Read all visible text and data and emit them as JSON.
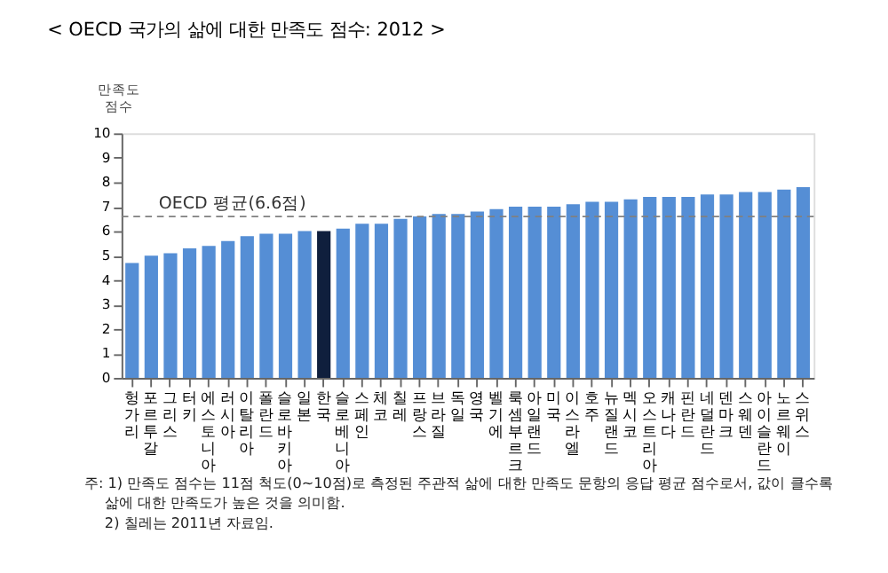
{
  "chart_data": {
    "type": "bar",
    "title": "< OECD 국가의 삶에 대한 만족도 점수: 2012 >",
    "ylabel": "만족도 점수",
    "categories": [
      "헝가리",
      "포르투갈",
      "그리스",
      "터키",
      "에스토니아",
      "러시아",
      "이탈리아",
      "폴란드",
      "슬로바키아",
      "일본",
      "한국",
      "슬로베니아",
      "스페인",
      "체코",
      "칠레",
      "프랑스",
      "브라질",
      "독일",
      "영국",
      "벨기에",
      "룩셈부르크",
      "아일랜드",
      "미국",
      "이스라엘",
      "호주",
      "뉴질랜드",
      "멕시코",
      "오스트리아",
      "캐나다",
      "핀란드",
      "네덜란드",
      "덴마크",
      "스웨덴",
      "아이슬란드",
      "노르웨이",
      "스위스"
    ],
    "values": [
      4.7,
      5.0,
      5.1,
      5.3,
      5.4,
      5.6,
      5.8,
      5.9,
      5.9,
      6.0,
      6.0,
      6.1,
      6.3,
      6.3,
      6.5,
      6.6,
      6.7,
      6.7,
      6.8,
      6.9,
      7.0,
      7.0,
      7.0,
      7.1,
      7.2,
      7.2,
      7.3,
      7.4,
      7.4,
      7.4,
      7.5,
      7.5,
      7.6,
      7.6,
      7.7,
      7.8
    ],
    "colors": [
      "#558ed5",
      "#558ed5",
      "#558ed5",
      "#558ed5",
      "#558ed5",
      "#558ed5",
      "#558ed5",
      "#558ed5",
      "#558ed5",
      "#558ed5",
      "#0f1f3d",
      "#558ed5",
      "#558ed5",
      "#558ed5",
      "#558ed5",
      "#558ed5",
      "#558ed5",
      "#558ed5",
      "#558ed5",
      "#558ed5",
      "#558ed5",
      "#558ed5",
      "#558ed5",
      "#558ed5",
      "#558ed5",
      "#558ed5",
      "#558ed5",
      "#558ed5",
      "#558ed5",
      "#558ed5",
      "#558ed5",
      "#558ed5",
      "#558ed5",
      "#558ed5",
      "#558ed5",
      "#558ed5"
    ],
    "ylim": [
      0,
      10
    ],
    "yticks": [
      0,
      1,
      2,
      3,
      4,
      5,
      6,
      7,
      8,
      9,
      10
    ],
    "grid": false,
    "ref_lines": [
      {
        "axis": "y",
        "value": 6.6,
        "label": "OECD 평균(6.6점)",
        "color": "#808080",
        "line_style": "dashed"
      }
    ],
    "annotations": [
      "주: 1) 만족도 점수는 11점 척도(0~10점)로 측정된 주관적 삶에 대한 만족도 문항의 응답 평균 점수로서, 값이 클수록 삶에 대한 만족도가 높은 것을 의미함.",
      "2) 칠레는 2011년 자료임."
    ]
  }
}
